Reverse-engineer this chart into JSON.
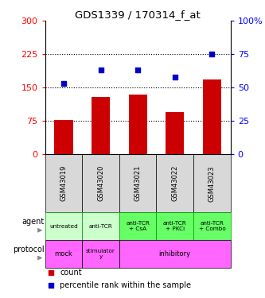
{
  "title": "GDS1339 / 170314_f_at",
  "samples": [
    "GSM43019",
    "GSM43020",
    "GSM43021",
    "GSM43022",
    "GSM43023"
  ],
  "bar_values": [
    78,
    130,
    135,
    95,
    168
  ],
  "dot_values": [
    53,
    63,
    63,
    58,
    75
  ],
  "bar_color": "#cc0000",
  "dot_color": "#0000cc",
  "left_ylim": [
    0,
    300
  ],
  "right_ylim": [
    0,
    100
  ],
  "left_yticks": [
    0,
    75,
    150,
    225,
    300
  ],
  "right_yticks": [
    0,
    25,
    50,
    75,
    100
  ],
  "right_yticklabels": [
    "0",
    "25",
    "50",
    "75",
    "100%"
  ],
  "hlines": [
    75,
    150,
    225
  ],
  "agent_labels": [
    "untreated",
    "anti-TCR",
    "anti-TCR\n+ CsA",
    "anti-TCR\n+ PKCi",
    "anti-TCR\n+ Combo"
  ],
  "agent_colors": [
    "#ccffcc",
    "#ccffcc",
    "#66ff66",
    "#66ff66",
    "#66ff66"
  ],
  "agent_border": "#009900",
  "protocol_color": "#ff66ff",
  "sample_bg_color": "#d8d8d8",
  "legend_count_color": "#cc0000",
  "legend_pct_color": "#0000cc"
}
